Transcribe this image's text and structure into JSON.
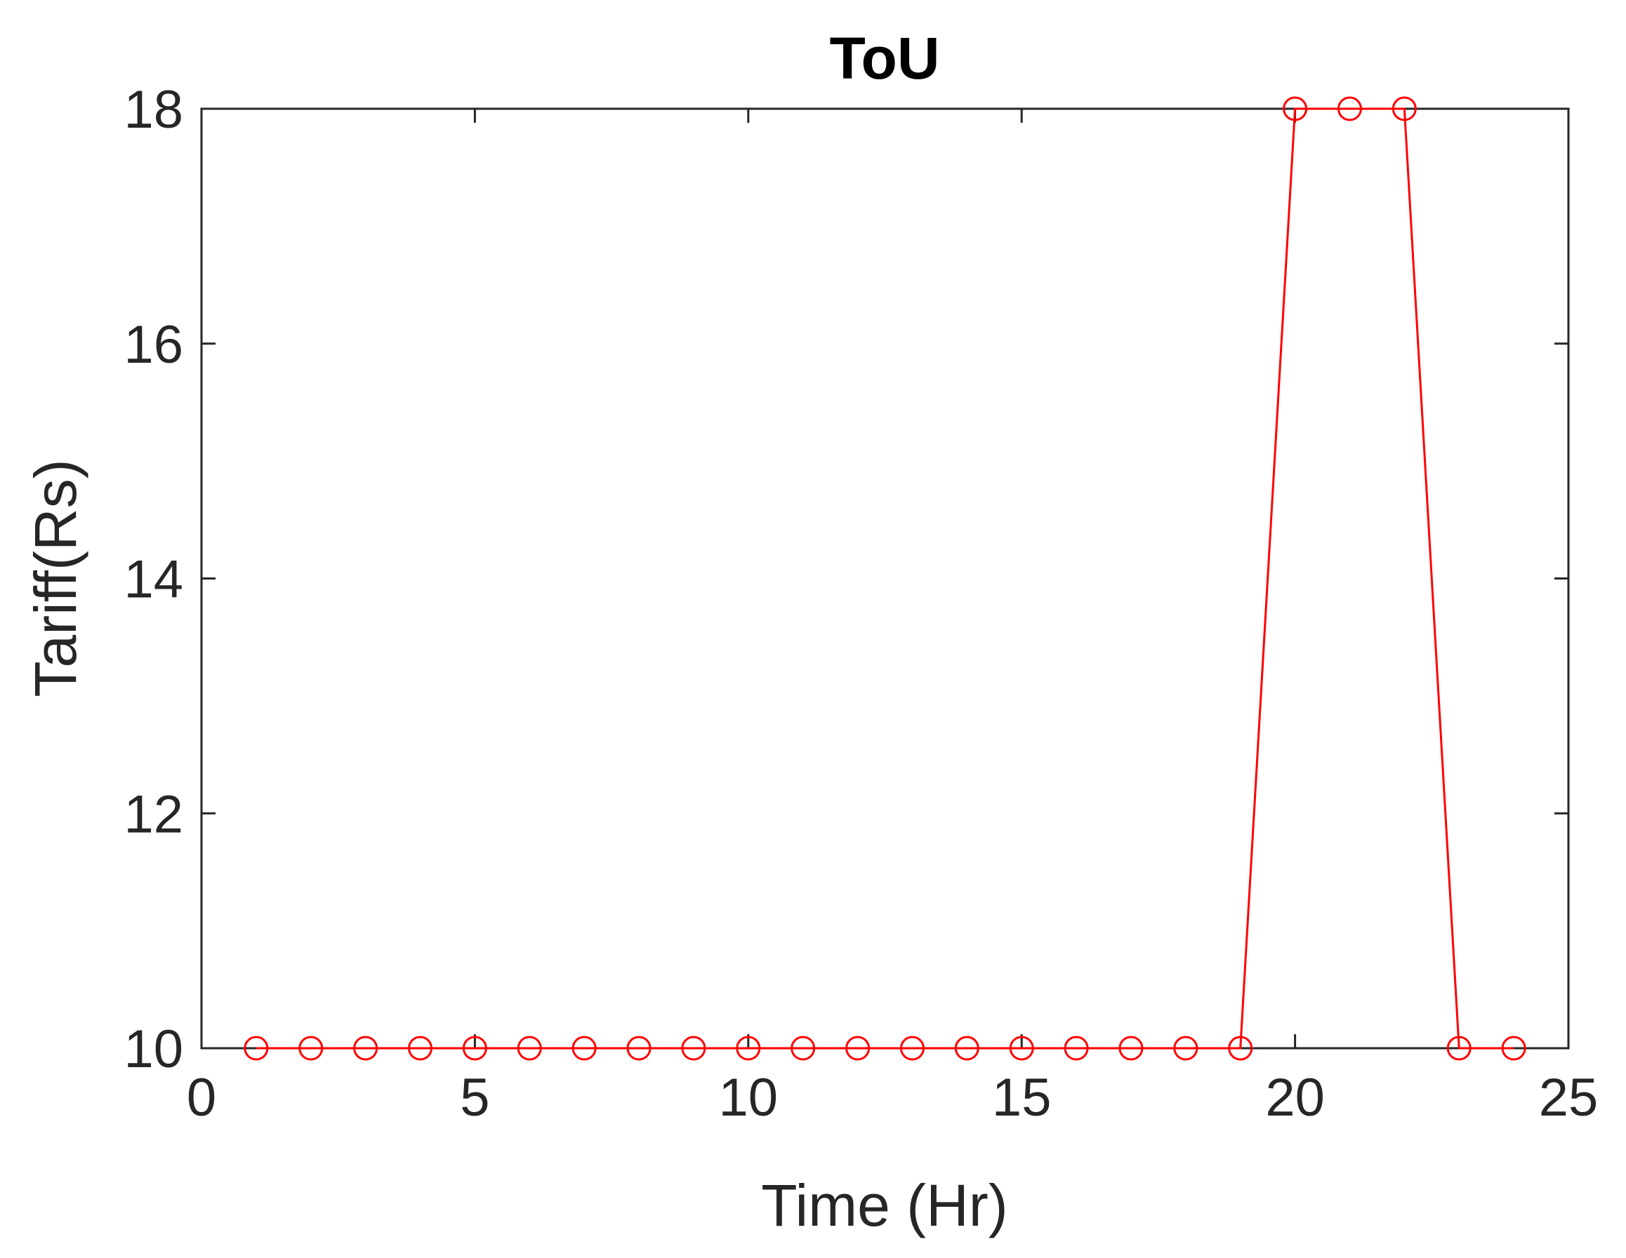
{
  "chart_data": {
    "type": "line",
    "title": "ToU",
    "xlabel": "Time (Hr)",
    "ylabel": "Tariff(Rs)",
    "xlim": [
      0,
      25
    ],
    "ylim": [
      10,
      18
    ],
    "xticks": [
      0,
      5,
      10,
      15,
      20,
      25
    ],
    "yticks": [
      10,
      12,
      14,
      16,
      18
    ],
    "xtick_labels": [
      "0",
      "5",
      "10",
      "15",
      "20",
      "25"
    ],
    "ytick_labels": [
      "10",
      "12",
      "14",
      "16",
      "18"
    ],
    "grid": false,
    "legend": "none",
    "series": [
      {
        "color": "#ff0000",
        "marker": "circle",
        "x": [
          1,
          2,
          3,
          4,
          5,
          6,
          7,
          8,
          9,
          10,
          11,
          12,
          13,
          14,
          15,
          16,
          17,
          18,
          19,
          20,
          21,
          22,
          23,
          24
        ],
        "y": [
          10,
          10,
          10,
          10,
          10,
          10,
          10,
          10,
          10,
          10,
          10,
          10,
          10,
          10,
          10,
          10,
          10,
          10,
          10,
          18,
          18,
          18,
          10,
          10
        ]
      }
    ]
  }
}
